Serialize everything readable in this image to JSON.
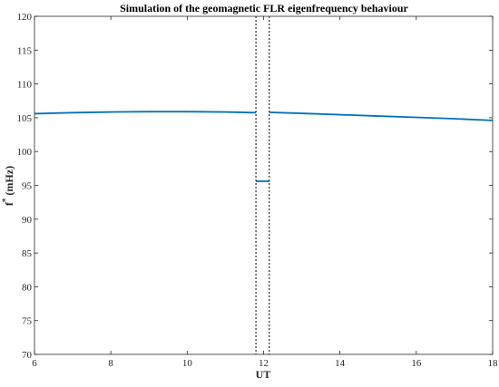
{
  "chart_data": {
    "type": "line",
    "title": "Simulation of the geomagnetic FLR eigenfrequency behaviour",
    "xlabel": "UT",
    "ylabel_main": "f",
    "ylabel_sup": "*",
    "ylabel_unit": "(mHz)",
    "xlim": [
      6,
      18
    ],
    "ylim": [
      70,
      120
    ],
    "xticks": [
      6,
      8,
      10,
      12,
      14,
      16,
      18
    ],
    "yticks": [
      70,
      75,
      80,
      85,
      90,
      95,
      100,
      105,
      110,
      115,
      120
    ],
    "grid": false,
    "line_color": "#0072BD",
    "series": [
      {
        "points": [
          [
            6,
            105.6
          ],
          [
            7,
            105.75
          ],
          [
            8,
            105.85
          ],
          [
            9,
            105.9
          ],
          [
            10,
            105.9
          ],
          [
            11,
            105.85
          ],
          [
            11.8,
            105.75
          ]
        ]
      },
      {
        "points": [
          [
            11.8,
            95.6
          ],
          [
            12.15,
            95.6
          ]
        ]
      },
      {
        "points": [
          [
            12.15,
            105.8
          ],
          [
            13,
            105.65
          ],
          [
            14,
            105.45
          ],
          [
            15,
            105.25
          ],
          [
            16,
            105.05
          ],
          [
            17,
            104.85
          ],
          [
            18,
            104.6
          ]
        ]
      }
    ],
    "vlines": [
      11.8,
      12.15
    ]
  }
}
